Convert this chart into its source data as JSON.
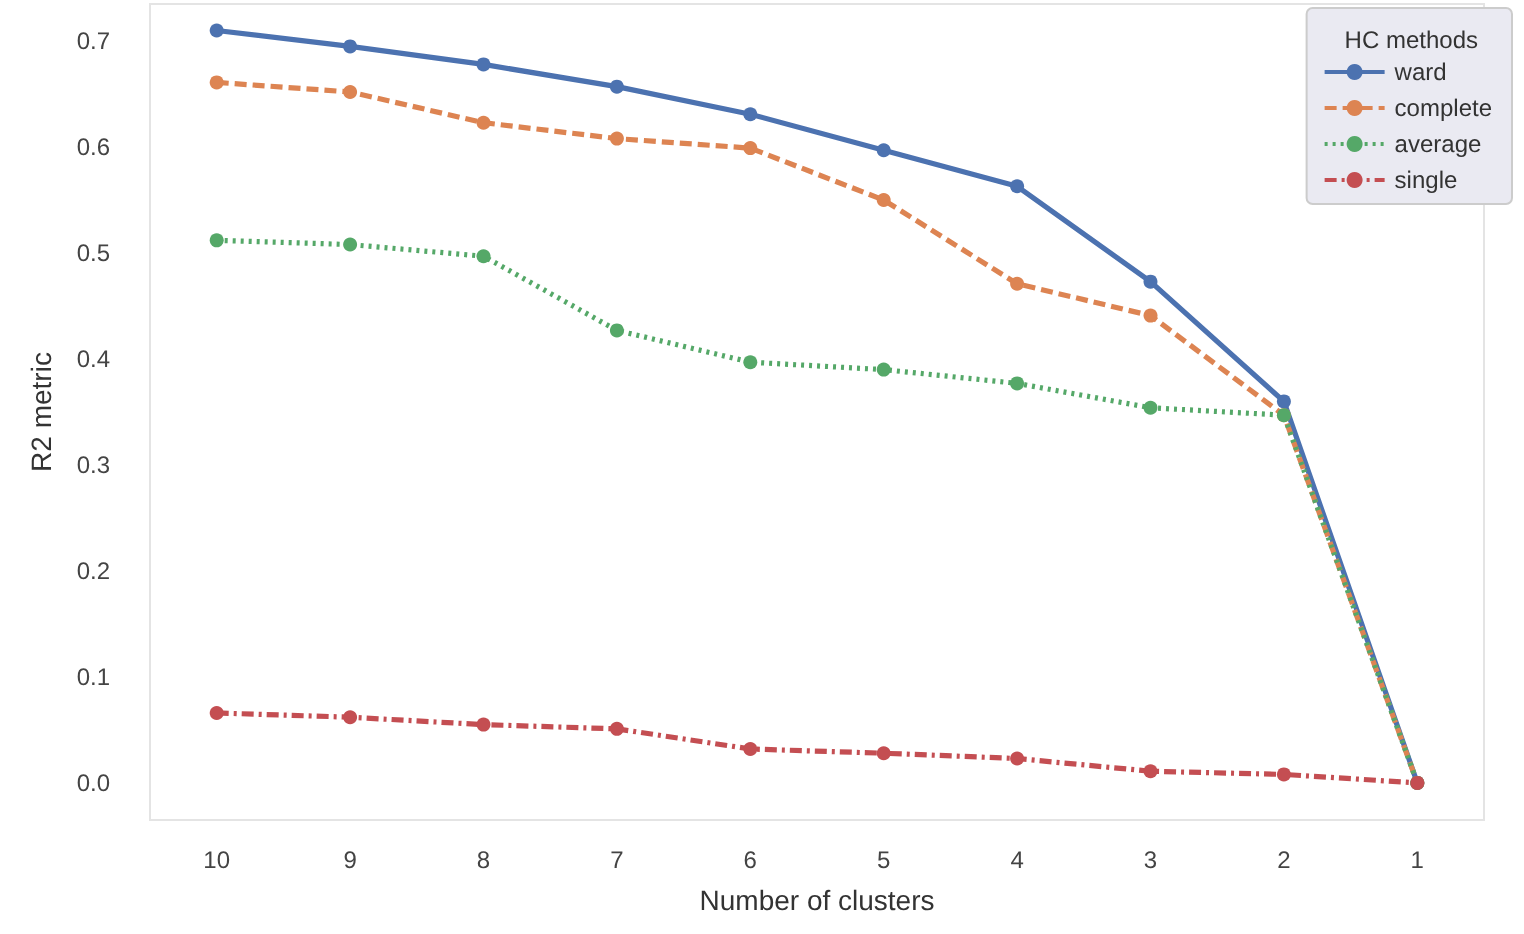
{
  "chart_data": {
    "type": "line",
    "xlabel": "Number of clusters",
    "ylabel": "R2 metric",
    "legend_title": "HC methods",
    "categories": [
      "10",
      "9",
      "8",
      "7",
      "6",
      "5",
      "4",
      "3",
      "2",
      "1"
    ],
    "series": [
      {
        "name": "ward",
        "color": "#4c72b0",
        "line_style": "solid",
        "values": [
          0.71,
          0.695,
          0.678,
          0.657,
          0.631,
          0.597,
          0.563,
          0.473,
          0.36,
          0.0
        ]
      },
      {
        "name": "complete",
        "color": "#dd8452",
        "line_style": "dashed",
        "values": [
          0.661,
          0.652,
          0.623,
          0.608,
          0.599,
          0.55,
          0.471,
          0.441,
          0.347,
          0.0
        ]
      },
      {
        "name": "average",
        "color": "#55a868",
        "line_style": "dotted",
        "values": [
          0.512,
          0.508,
          0.497,
          0.427,
          0.397,
          0.39,
          0.377,
          0.354,
          0.347,
          0.0
        ]
      },
      {
        "name": "single",
        "color": "#c44e52",
        "line_style": "dashdot",
        "values": [
          0.066,
          0.062,
          0.055,
          0.051,
          0.032,
          0.028,
          0.023,
          0.011,
          0.008,
          0.0
        ]
      }
    ],
    "ylim": [
      -0.035,
      0.735
    ],
    "yticks": [
      {
        "value": 0,
        "label": "0.0"
      },
      0.1,
      0.2,
      0.3,
      0.4,
      0.5,
      0.6,
      0.7
    ],
    "grid": false,
    "legend": "top right",
    "marker": "circle"
  }
}
